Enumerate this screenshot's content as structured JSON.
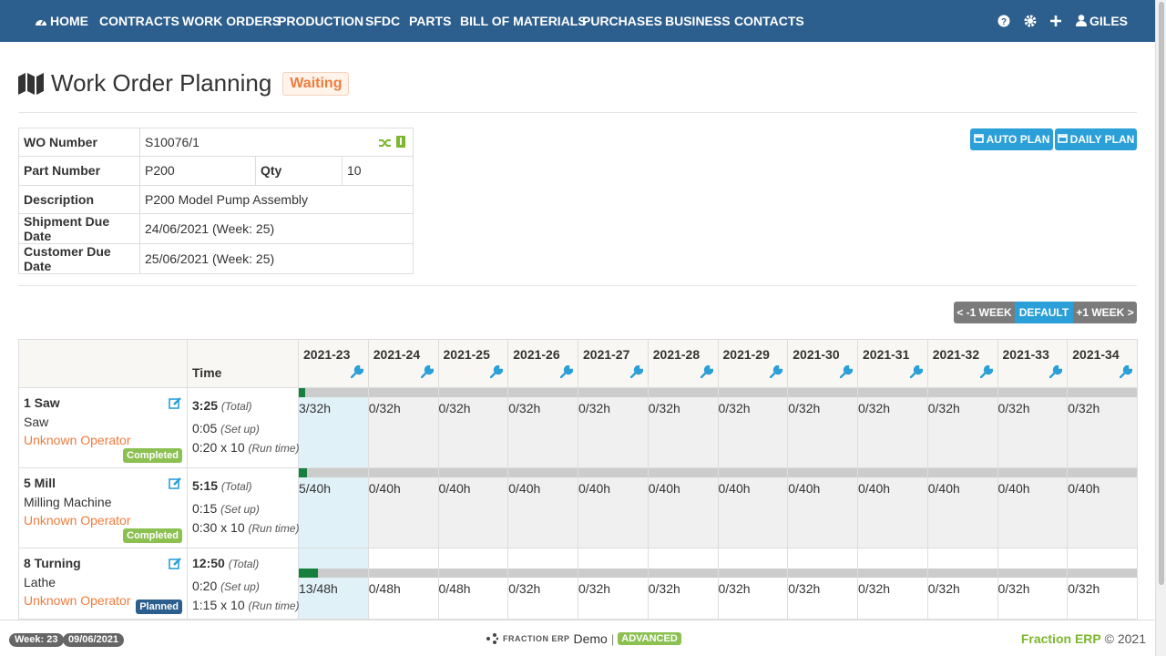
{
  "nav": {
    "items": [
      "HOME",
      "CONTRACTS",
      "WORK ORDERS",
      "PRODUCTION",
      "SFDC",
      "PARTS",
      "BILL OF MATERIALS",
      "PURCHASES",
      "BUSINESS",
      "CONTACTS"
    ],
    "user": "GILES"
  },
  "header": {
    "title": "Work Order Planning",
    "status": "Waiting"
  },
  "info": {
    "rows": [
      [
        "WO Number",
        "S10076/1"
      ],
      [
        "Part Number",
        "P200",
        "Qty",
        "10"
      ],
      [
        "Description",
        "P200 Model Pump Assembly"
      ],
      [
        "Shipment Due Date",
        "24/06/2021 (Week: 25)"
      ],
      [
        "Customer Due Date",
        "25/06/2021 (Week: 25)"
      ]
    ]
  },
  "actions": [
    "AUTO PLAN",
    "DAILY PLAN"
  ],
  "week_nav": [
    "< -1 WEEK",
    "DEFAULT",
    "+1 WEEK >"
  ],
  "planning": {
    "time_header": "Time",
    "weeks": [
      "2021-23",
      "2021-24",
      "2021-25",
      "2021-26",
      "2021-27",
      "2021-28",
      "2021-29",
      "2021-30",
      "2021-31",
      "2021-32",
      "2021-33",
      "2021-34"
    ],
    "operations": [
      {
        "name": "1 Saw",
        "machine": "Saw",
        "operator": "Unknown Operator",
        "status": "Completed",
        "total": "3:25",
        "total_note": "(Total)",
        "setup": "0:05",
        "setup_note": "(Set up)",
        "run": "0:20 x 10",
        "run_note": "(Run time)",
        "cells": [
          "3/32h",
          "0/32h",
          "0/32h",
          "0/32h",
          "0/32h",
          "0/32h",
          "0/32h",
          "0/32h",
          "0/32h",
          "0/32h",
          "0/32h",
          "0/32h"
        ]
      },
      {
        "name": "5 Mill",
        "machine": "Milling Machine",
        "operator": "Unknown Operator",
        "status": "Completed",
        "total": "5:15",
        "total_note": "(Total)",
        "setup": "0:15",
        "setup_note": "(Set up)",
        "run": "0:30 x 10",
        "run_note": "(Run time)",
        "cells": [
          "5/40h",
          "0/40h",
          "0/40h",
          "0/40h",
          "0/40h",
          "0/40h",
          "0/40h",
          "0/40h",
          "0/40h",
          "0/40h",
          "0/40h",
          "0/40h"
        ]
      },
      {
        "name": "8 Turning",
        "machine": "Lathe",
        "operator": "Unknown Operator",
        "status": "Planned",
        "total": "12:50",
        "total_note": "(Total)",
        "setup": "0:20",
        "setup_note": "(Set up)",
        "run": "1:15 x 10",
        "run_note": "(Run time)",
        "cells": [
          "13/48h",
          "0/48h",
          "0/48h",
          "0/32h",
          "0/32h",
          "0/32h",
          "0/32h",
          "0/32h",
          "0/32h",
          "0/32h",
          "0/32h",
          "0/32h"
        ]
      }
    ]
  },
  "footer": {
    "week": "Week: 23",
    "date": "09/06/2021",
    "brand": "FRACTION ERP",
    "edition": "Demo",
    "separator": "|",
    "plan": "ADVANCED",
    "company": "Fraction ERP",
    "copyright": "© 2021"
  }
}
